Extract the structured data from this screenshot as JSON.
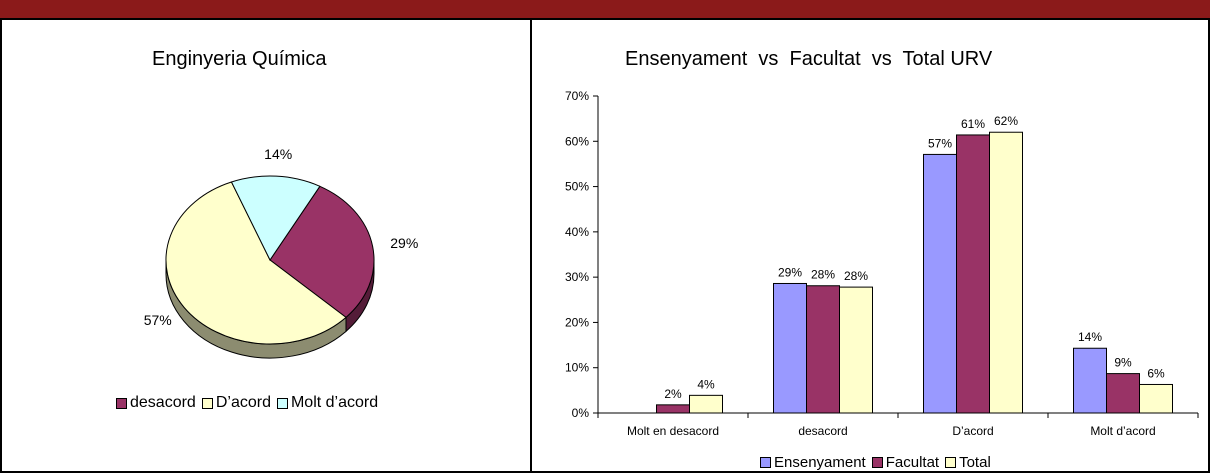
{
  "pie_chart": {
    "title": "Enginyeria Química",
    "chart_data": {
      "type": "pie",
      "slices": [
        {
          "name": "desacord",
          "value": 29,
          "label": "29%",
          "color": "#993366"
        },
        {
          "name": "D'acord",
          "value": 57,
          "label": "57%",
          "color": "#ffffcc"
        },
        {
          "name": "Molt d'acord",
          "value": 14,
          "label": "14%",
          "color": "#ccffff"
        }
      ],
      "legend_position": "bottom"
    },
    "legend": [
      {
        "label": "desacord",
        "color": "#993366"
      },
      {
        "label": "D’acord",
        "color": "#ffffcc"
      },
      {
        "label": "Molt d’acord",
        "color": "#ccffff"
      }
    ]
  },
  "bar_chart": {
    "title": "Ensenyament  vs  Facultat  vs  Total URV",
    "chart_data": {
      "type": "bar",
      "categories": [
        "Molt en desacord",
        "desacord",
        "D'acord",
        "Molt d'acord"
      ],
      "series": [
        {
          "name": "Ensenyament",
          "color": "#9999ff",
          "values": [
            0,
            28.6,
            57.1,
            14.3
          ],
          "labels": [
            "",
            "29%",
            "57%",
            "14%"
          ]
        },
        {
          "name": "Facultat",
          "color": "#993366",
          "values": [
            1.8,
            28.1,
            61.4,
            8.7
          ],
          "labels": [
            "2%",
            "28%",
            "61%",
            "9%"
          ]
        },
        {
          "name": "Total",
          "color": "#ffffcc",
          "values": [
            3.9,
            27.8,
            62.0,
            6.3
          ],
          "labels": [
            "4%",
            "28%",
            "62%",
            "6%"
          ]
        }
      ],
      "ylim": [
        0,
        70
      ],
      "yticks": [
        "0%",
        "10%",
        "20%",
        "30%",
        "40%",
        "50%",
        "60%",
        "70%"
      ],
      "legend_position": "bottom"
    },
    "legend": [
      {
        "label": "Ensenyament",
        "color": "#9999ff"
      },
      {
        "label": "Facultat",
        "color": "#993366"
      },
      {
        "label": "Total",
        "color": "#ffffcc"
      }
    ]
  }
}
